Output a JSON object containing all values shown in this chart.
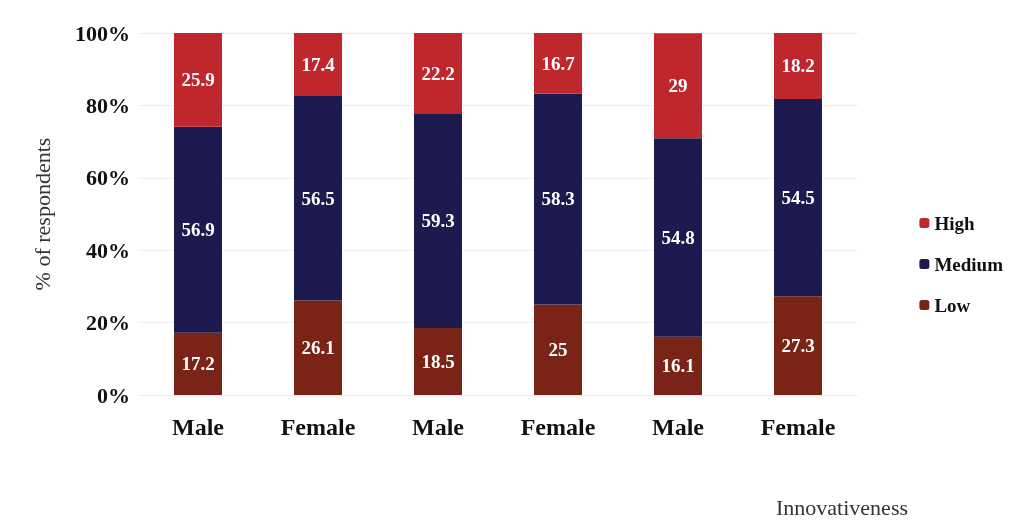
{
  "chart_data": {
    "type": "bar",
    "stacked": true,
    "xlabel": "Innovativeness",
    "ylabel": "% of respondents",
    "categories": [
      "Male",
      "Female",
      "Male",
      "Female",
      "Male",
      "Female"
    ],
    "series": [
      {
        "name": "Low",
        "color": "#7a2418",
        "values": [
          17.2,
          26.1,
          18.5,
          25,
          16.1,
          27.3
        ]
      },
      {
        "name": "Medium",
        "color": "#1c1a4e",
        "values": [
          56.9,
          56.5,
          59.3,
          58.3,
          54.8,
          54.5
        ]
      },
      {
        "name": "High",
        "color": "#c0272d",
        "values": [
          25.9,
          17.4,
          22.2,
          16.7,
          29,
          18.2
        ]
      }
    ],
    "ylim": [
      0,
      100
    ],
    "yticks": [
      {
        "value": 0,
        "label": "0%"
      },
      {
        "value": 20,
        "label": "20%"
      },
      {
        "value": 40,
        "label": "40%"
      },
      {
        "value": 60,
        "label": "60%"
      },
      {
        "value": 80,
        "label": "80%"
      },
      {
        "value": 100,
        "label": "100%"
      }
    ],
    "grid": "y",
    "legend": "right",
    "data_labels": true
  }
}
